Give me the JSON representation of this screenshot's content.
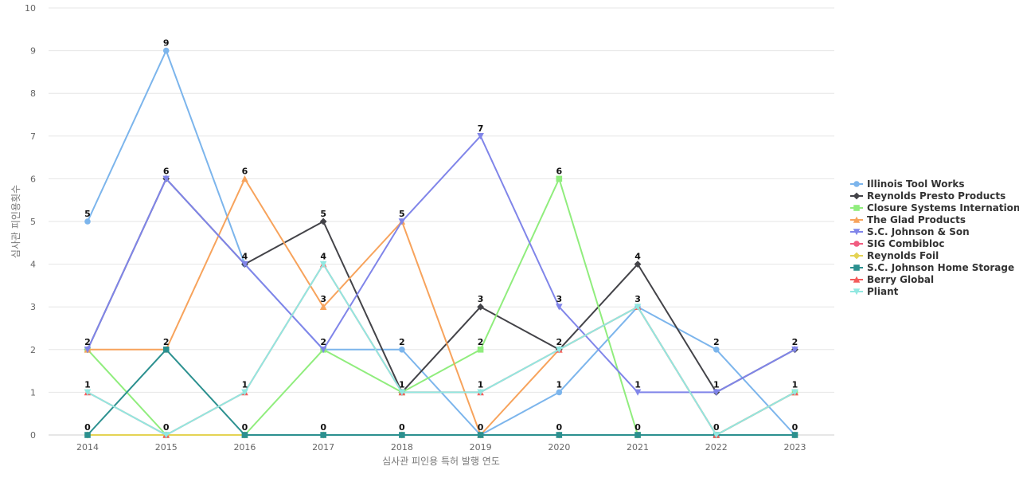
{
  "chart_data": {
    "type": "line",
    "title": "",
    "xlabel": "심사관 피인용 특허 발행 연도",
    "ylabel": "심사관 피인용횟수",
    "x": [
      "2014",
      "2015",
      "2016",
      "2017",
      "2018",
      "2019",
      "2020",
      "2021",
      "2022",
      "2023"
    ],
    "ylim": [
      0,
      10
    ],
    "yticks": [
      0,
      1,
      2,
      3,
      4,
      5,
      6,
      7,
      8,
      9,
      10
    ],
    "grid": true,
    "legend_position": "right",
    "series": [
      {
        "name": "Illinois Tool Works",
        "color": "#7cb5ec",
        "marker": "circle",
        "values": [
          5,
          9,
          4,
          2,
          2,
          0,
          1,
          3,
          2,
          0
        ]
      },
      {
        "name": "Reynolds Presto Products",
        "color": "#434348",
        "marker": "diamond",
        "values": [
          2,
          6,
          4,
          5,
          1,
          3,
          2,
          4,
          1,
          2
        ]
      },
      {
        "name": "Closure Systems International",
        "color": "#90ed7d",
        "marker": "square",
        "values": [
          2,
          0,
          0,
          2,
          1,
          2,
          6,
          0,
          0,
          1
        ]
      },
      {
        "name": "The Glad Products",
        "color": "#f7a35c",
        "marker": "triangle",
        "values": [
          2,
          2,
          6,
          3,
          5,
          0,
          2,
          3,
          0,
          1
        ]
      },
      {
        "name": "S.C. Johnson & Son",
        "color": "#8085e9",
        "marker": "triangle-down",
        "values": [
          2,
          6,
          4,
          2,
          5,
          7,
          3,
          1,
          1,
          2
        ]
      },
      {
        "name": "SIG Combibloc",
        "color": "#f15c80",
        "marker": "circle",
        "values": [
          0,
          0,
          0,
          0,
          0,
          0,
          0,
          0,
          0,
          0
        ]
      },
      {
        "name": "Reynolds Foil",
        "color": "#e4d354",
        "marker": "diamond",
        "values": [
          0,
          0,
          0,
          0,
          0,
          0,
          0,
          0,
          0,
          0
        ]
      },
      {
        "name": "S.C. Johnson Home Storage",
        "color": "#2b908f",
        "marker": "square",
        "values": [
          0,
          2,
          0,
          0,
          0,
          0,
          0,
          0,
          0,
          0
        ]
      },
      {
        "name": "Berry Global",
        "color": "#f45b5b",
        "marker": "triangle",
        "values": [
          1,
          0,
          1,
          4,
          1,
          1,
          2,
          3,
          0,
          1
        ]
      },
      {
        "name": "Pliant",
        "color": "#91e8e1",
        "marker": "triangle-down",
        "values": [
          1,
          0,
          1,
          4,
          1,
          1,
          2,
          3,
          0,
          1
        ]
      }
    ],
    "data_labels": [
      {
        "x": "2014",
        "y": 5,
        "text": "5"
      },
      {
        "x": "2014",
        "y": 2,
        "text": "2"
      },
      {
        "x": "2014",
        "y": 1,
        "text": "1"
      },
      {
        "x": "2014",
        "y": 0,
        "text": "0"
      },
      {
        "x": "2015",
        "y": 9,
        "text": "9"
      },
      {
        "x": "2015",
        "y": 6,
        "text": "6"
      },
      {
        "x": "2015",
        "y": 2,
        "text": "2"
      },
      {
        "x": "2015",
        "y": 0,
        "text": "0"
      },
      {
        "x": "2016",
        "y": 6,
        "text": "6"
      },
      {
        "x": "2016",
        "y": 4,
        "text": "4"
      },
      {
        "x": "2016",
        "y": 1,
        "text": "1"
      },
      {
        "x": "2016",
        "y": 0,
        "text": "0"
      },
      {
        "x": "2017",
        "y": 5,
        "text": "5"
      },
      {
        "x": "2017",
        "y": 4,
        "text": "4"
      },
      {
        "x": "2017",
        "y": 3,
        "text": "3"
      },
      {
        "x": "2017",
        "y": 2,
        "text": "2"
      },
      {
        "x": "2017",
        "y": 0,
        "text": "0"
      },
      {
        "x": "2018",
        "y": 5,
        "text": "5"
      },
      {
        "x": "2018",
        "y": 2,
        "text": "2"
      },
      {
        "x": "2018",
        "y": 1,
        "text": "1"
      },
      {
        "x": "2018",
        "y": 0,
        "text": "0"
      },
      {
        "x": "2019",
        "y": 7,
        "text": "7"
      },
      {
        "x": "2019",
        "y": 3,
        "text": "3"
      },
      {
        "x": "2019",
        "y": 2,
        "text": "2"
      },
      {
        "x": "2019",
        "y": 1,
        "text": "1"
      },
      {
        "x": "2019",
        "y": 0,
        "text": "0"
      },
      {
        "x": "2020",
        "y": 6,
        "text": "6"
      },
      {
        "x": "2020",
        "y": 3,
        "text": "3"
      },
      {
        "x": "2020",
        "y": 2,
        "text": "2"
      },
      {
        "x": "2020",
        "y": 1,
        "text": "1"
      },
      {
        "x": "2020",
        "y": 0,
        "text": "0"
      },
      {
        "x": "2021",
        "y": 4,
        "text": "4"
      },
      {
        "x": "2021",
        "y": 3,
        "text": "3"
      },
      {
        "x": "2021",
        "y": 1,
        "text": "1"
      },
      {
        "x": "2021",
        "y": 0,
        "text": "0"
      },
      {
        "x": "2022",
        "y": 2,
        "text": "2"
      },
      {
        "x": "2022",
        "y": 1,
        "text": "1"
      },
      {
        "x": "2022",
        "y": 0,
        "text": "0"
      },
      {
        "x": "2023",
        "y": 2,
        "text": "2"
      },
      {
        "x": "2023",
        "y": 1,
        "text": "1"
      },
      {
        "x": "2023",
        "y": 0,
        "text": "0"
      }
    ]
  }
}
